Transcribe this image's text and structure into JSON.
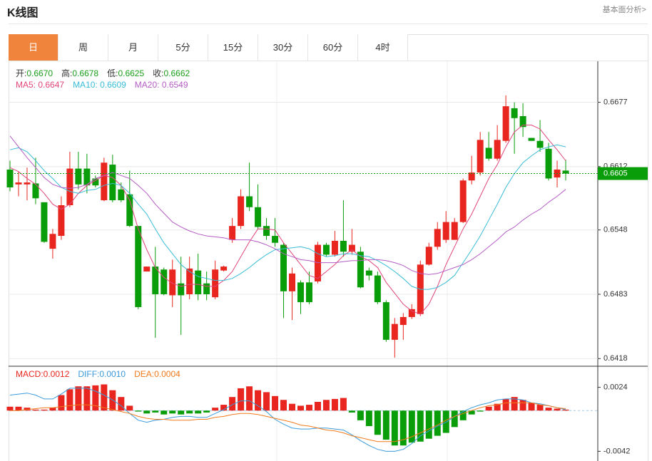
{
  "header": {
    "title": "K线图",
    "link": "基本面分析>"
  },
  "tabs": [
    "日",
    "周",
    "月",
    "5分",
    "15分",
    "30分",
    "60分",
    "4时"
  ],
  "active_tab": "日",
  "chart_data": {
    "type": "candlestick",
    "up_color": "#e8251e",
    "down_color": "#0a9d0a",
    "ohlc_info": [
      {
        "name": "开:",
        "value": 0.667,
        "value_label": "0.6670"
      },
      {
        "name": "高:",
        "value": 0.6678
      },
      {
        "name": "低:",
        "value": 0.6625
      },
      {
        "name": "收:",
        "value": 0.6662
      }
    ],
    "info_value_color": "#1a9e1a",
    "ylim": [
      0.6411,
      0.6717
    ],
    "yticks": [
      0.6677,
      0.6612,
      0.6548,
      0.6483,
      0.6418
    ],
    "grid": true,
    "last_price": 0.6605,
    "last_price_color": "#0a9d0a",
    "candles": {
      "open": [
        0.6609,
        0.6594,
        0.6594,
        0.6595,
        0.6576,
        0.6529,
        0.6542,
        0.6573,
        0.661,
        0.661,
        0.66,
        0.6578,
        0.6614,
        0.6589,
        0.6584,
        0.6552,
        0.6506,
        0.6511,
        0.6508,
        0.6482,
        0.6494,
        0.6483,
        0.6507,
        0.6494,
        0.648,
        0.6507,
        0.6538,
        0.6552,
        0.6582,
        0.6571,
        0.6552,
        0.6542,
        0.6533,
        0.6486,
        0.6495,
        0.6495,
        0.6496,
        0.6533,
        0.6523,
        0.6537,
        0.6526,
        0.6526,
        0.6507,
        0.6502,
        0.6475,
        0.6437,
        0.6452,
        0.646,
        0.6463,
        0.6513,
        0.6531,
        0.6538,
        0.6538,
        0.6556,
        0.6598,
        0.6606,
        0.6631,
        0.662,
        0.6638,
        0.6671,
        0.6663,
        0.6641,
        0.6638,
        0.663,
        0.6601,
        0.6608
      ],
      "high": [
        0.6618,
        0.6607,
        0.6611,
        0.6621,
        0.6576,
        0.6549,
        0.6582,
        0.6627,
        0.6627,
        0.6625,
        0.6603,
        0.6621,
        0.6624,
        0.6596,
        0.6608,
        0.6552,
        0.6511,
        0.6531,
        0.651,
        0.6518,
        0.6521,
        0.6521,
        0.6524,
        0.6506,
        0.6517,
        0.6512,
        0.656,
        0.6589,
        0.6616,
        0.6594,
        0.656,
        0.656,
        0.6535,
        0.651,
        0.6497,
        0.6506,
        0.6536,
        0.6535,
        0.6547,
        0.6578,
        0.6549,
        0.6531,
        0.651,
        0.6506,
        0.6477,
        0.6459,
        0.6464,
        0.6473,
        0.6517,
        0.6535,
        0.6556,
        0.6567,
        0.656,
        0.66,
        0.6623,
        0.6647,
        0.6647,
        0.6654,
        0.6684,
        0.6677,
        0.6676,
        0.6641,
        0.6659,
        0.6636,
        0.6618,
        0.6619
      ],
      "low": [
        0.6587,
        0.6582,
        0.6578,
        0.6574,
        0.6535,
        0.6519,
        0.6538,
        0.6571,
        0.6589,
        0.6585,
        0.6591,
        0.6577,
        0.6576,
        0.6576,
        0.6551,
        0.6468,
        0.6506,
        0.6439,
        0.6482,
        0.647,
        0.6442,
        0.6478,
        0.6477,
        0.6477,
        0.6478,
        0.6506,
        0.6535,
        0.6549,
        0.6567,
        0.6549,
        0.6538,
        0.6531,
        0.6459,
        0.6457,
        0.6463,
        0.6473,
        0.6494,
        0.6521,
        0.6521,
        0.6521,
        0.6523,
        0.6489,
        0.6497,
        0.6473,
        0.6435,
        0.6419,
        0.6437,
        0.6458,
        0.6461,
        0.6512,
        0.6528,
        0.6535,
        0.6538,
        0.6555,
        0.6594,
        0.6603,
        0.6618,
        0.6618,
        0.6636,
        0.6625,
        0.6642,
        0.6638,
        0.6627,
        0.6598,
        0.6591,
        0.6598
      ],
      "close": [
        0.6591,
        0.6596,
        0.6596,
        0.658,
        0.6536,
        0.6544,
        0.6573,
        0.661,
        0.6594,
        0.6593,
        0.6593,
        0.6616,
        0.6578,
        0.6578,
        0.6552,
        0.647,
        0.6511,
        0.6483,
        0.6483,
        0.6508,
        0.6482,
        0.6509,
        0.6483,
        0.6483,
        0.6508,
        0.6511,
        0.6552,
        0.6582,
        0.6571,
        0.6551,
        0.6542,
        0.6535,
        0.6486,
        0.6504,
        0.6475,
        0.6475,
        0.6533,
        0.6523,
        0.6537,
        0.6526,
        0.6533,
        0.649,
        0.6502,
        0.6475,
        0.6437,
        0.6453,
        0.646,
        0.6468,
        0.6513,
        0.6531,
        0.6549,
        0.6556,
        0.6556,
        0.6598,
        0.6606,
        0.6639,
        0.662,
        0.6639,
        0.6673,
        0.6661,
        0.6652,
        0.6638,
        0.6631,
        0.66,
        0.6609,
        0.6605
      ]
    },
    "ma_series": [
      {
        "name": "MA5:",
        "color": "#e0457b",
        "current": 0.6647,
        "values": [
          0.6611,
          0.6607,
          0.66,
          0.6594,
          0.6585,
          0.6574,
          0.6569,
          0.6574,
          0.6585,
          0.6593,
          0.6598,
          0.6603,
          0.6601,
          0.6593,
          0.6578,
          0.6549,
          0.6528,
          0.651,
          0.65,
          0.6494,
          0.6491,
          0.6493,
          0.6493,
          0.6491,
          0.6491,
          0.6497,
          0.6506,
          0.6521,
          0.6536,
          0.6549,
          0.6549,
          0.6548,
          0.6535,
          0.6524,
          0.6513,
          0.6502,
          0.6499,
          0.6506,
          0.6513,
          0.6522,
          0.6528,
          0.6521,
          0.6517,
          0.651,
          0.6495,
          0.6484,
          0.6473,
          0.6466,
          0.6463,
          0.6473,
          0.6491,
          0.6513,
          0.6531,
          0.6549,
          0.6564,
          0.6582,
          0.66,
          0.6614,
          0.6632,
          0.6647,
          0.6654,
          0.6654,
          0.665,
          0.6639,
          0.6629,
          0.6618
        ]
      },
      {
        "name": "MA10:",
        "color": "#38bcd6",
        "current": 0.6609,
        "values": [
          0.6629,
          0.6631,
          0.6627,
          0.6618,
          0.6608,
          0.66,
          0.6591,
          0.6587,
          0.6585,
          0.6588,
          0.6589,
          0.6593,
          0.6595,
          0.6593,
          0.6585,
          0.6574,
          0.6564,
          0.6549,
          0.6535,
          0.6524,
          0.6513,
          0.6506,
          0.6501,
          0.6499,
          0.6497,
          0.6497,
          0.6499,
          0.6504,
          0.651,
          0.6517,
          0.6523,
          0.6528,
          0.6529,
          0.653,
          0.6531,
          0.6529,
          0.6524,
          0.6521,
          0.6522,
          0.6524,
          0.6524,
          0.6522,
          0.6521,
          0.6517,
          0.6512,
          0.6506,
          0.6499,
          0.6491,
          0.6488,
          0.6488,
          0.649,
          0.6495,
          0.6502,
          0.6515,
          0.6528,
          0.6542,
          0.6558,
          0.6574,
          0.6591,
          0.6605,
          0.6616,
          0.6623,
          0.6629,
          0.6632,
          0.6634,
          0.6632
        ]
      },
      {
        "name": "MA20:",
        "color": "#b45cc4",
        "current": 0.6549,
        "values": [
          0.6643,
          0.6632,
          0.6621,
          0.6611,
          0.6601,
          0.6594,
          0.6591,
          0.659,
          0.6591,
          0.6594,
          0.66,
          0.6603,
          0.6606,
          0.6603,
          0.66,
          0.6593,
          0.6585,
          0.6574,
          0.6565,
          0.6556,
          0.6551,
          0.6547,
          0.6544,
          0.6542,
          0.6541,
          0.654,
          0.6538,
          0.6538,
          0.6538,
          0.6536,
          0.6533,
          0.6529,
          0.6524,
          0.6521,
          0.6518,
          0.6517,
          0.6515,
          0.6515,
          0.6515,
          0.6516,
          0.6517,
          0.6517,
          0.6518,
          0.6518,
          0.6517,
          0.6515,
          0.6512,
          0.6507,
          0.6504,
          0.6503,
          0.6504,
          0.6507,
          0.651,
          0.6513,
          0.6518,
          0.6524,
          0.6531,
          0.6538,
          0.6546,
          0.6551,
          0.6558,
          0.6564,
          0.6569,
          0.6576,
          0.6582,
          0.6589
        ]
      }
    ],
    "macd": {
      "ylim": [
        -0.0052,
        0.0045
      ],
      "yticks": [
        0.0024,
        -0.0042
      ],
      "histogram": {
        "name": "MACD:",
        "color": "#e8251e",
        "current": 0.0012,
        "values": [
          0.0004,
          0.0004,
          0.0003,
          0.0001,
          0.0001,
          0.0003,
          0.0016,
          0.0022,
          0.0025,
          0.0025,
          0.0026,
          0.0027,
          0.0021,
          0.0014,
          0.0005,
          -0.0001,
          -0.0003,
          -0.0002,
          -0.0004,
          -0.0003,
          -0.0004,
          -0.0003,
          -0.0003,
          -0.0002,
          0.0003,
          0.0006,
          0.0014,
          0.0023,
          0.0025,
          0.0021,
          0.0019,
          0.0015,
          0.0011,
          0.0007,
          0.0005,
          0.0006,
          0.0009,
          0.0011,
          0.0012,
          0.0013,
          -0.0002,
          -0.001,
          -0.0016,
          -0.0025,
          -0.003,
          -0.0036,
          -0.0036,
          -0.0033,
          -0.0032,
          -0.0029,
          -0.0026,
          -0.0023,
          -0.0017,
          -0.001,
          -0.0004,
          -0.0001,
          0.0004,
          0.0007,
          0.0012,
          0.0014,
          0.0011,
          0.0008,
          0.0006,
          0.0003,
          0.0002,
          0.0001
        ]
      },
      "lines": [
        {
          "name": "DIFF:",
          "color": "#3a9ad9",
          "current": 0.001,
          "current_label": "0.0010",
          "values": [
            0.0016,
            0.0017,
            0.0018,
            0.0016,
            0.0012,
            0.0012,
            0.0017,
            0.0023,
            0.0023,
            0.0023,
            0.002,
            0.0016,
            0.0011,
            0.0005,
            -0.0003,
            -0.001,
            -0.0012,
            -0.001,
            -0.0009,
            -0.0007,
            -0.0006,
            -0.0006,
            -0.0007,
            -0.0007,
            -0.0003,
            0.0001,
            0.0006,
            0.001,
            0.001,
            0.0005,
            -0.0001,
            -0.0009,
            -0.0014,
            -0.0018,
            -0.0019,
            -0.0019,
            -0.0018,
            -0.0018,
            -0.0019,
            -0.002,
            -0.0025,
            -0.0031,
            -0.0036,
            -0.004,
            -0.0042,
            -0.0042,
            -0.004,
            -0.0034,
            -0.0026,
            -0.0021,
            -0.0016,
            -0.0012,
            -0.0006,
            -0.0001,
            0.0003,
            0.0006,
            0.0008,
            0.0011,
            0.0012,
            0.0012,
            0.0011,
            0.0008,
            0.0007,
            0.0005,
            0.0003,
            0.0001
          ]
        },
        {
          "name": "DEA:",
          "color": "#f07a1c",
          "current": 0.0004,
          "values": [
            0.0,
            0.0,
            0.0001,
            0.0002,
            0.0003,
            0.0003,
            0.0004,
            0.0005,
            0.0006,
            0.0006,
            0.0005,
            0.0003,
            0.0001,
            -0.0001,
            -0.0003,
            -0.0006,
            -0.0008,
            -0.0009,
            -0.0009,
            -0.001,
            -0.001,
            -0.001,
            -0.0009,
            -0.0009,
            -0.0007,
            -0.0006,
            -0.0004,
            -0.0003,
            -0.0003,
            -0.0004,
            -0.0006,
            -0.0008,
            -0.001,
            -0.0012,
            -0.0015,
            -0.0016,
            -0.0018,
            -0.002,
            -0.0021,
            -0.0023,
            -0.0026,
            -0.0028,
            -0.003,
            -0.0032,
            -0.0032,
            -0.0032,
            -0.003,
            -0.0027,
            -0.0023,
            -0.0019,
            -0.0015,
            -0.001,
            -0.0006,
            -0.0003,
            0.0,
            0.0003,
            0.0005,
            0.0006,
            0.0008,
            0.0008,
            0.0008,
            0.0008,
            0.0006,
            0.0005,
            0.0003,
            0.0002
          ]
        }
      ]
    }
  }
}
